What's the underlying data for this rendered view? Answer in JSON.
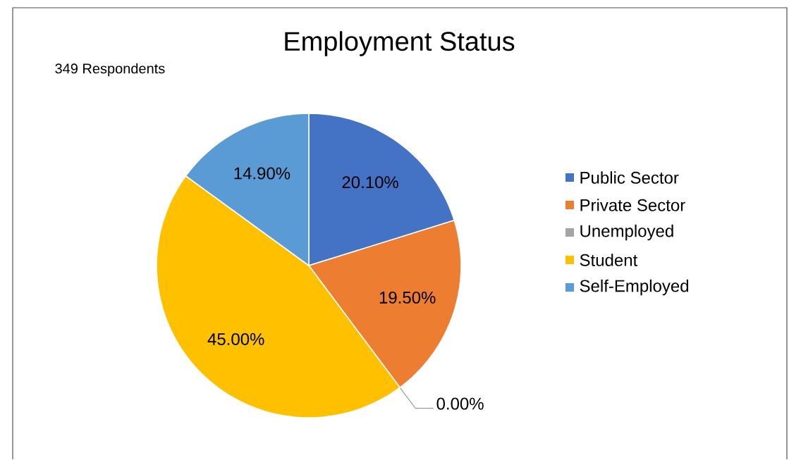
{
  "chart_data": {
    "type": "pie",
    "title": "Employment Status",
    "annotations": [
      "349 Respondents"
    ],
    "categories": [
      "Public Sector",
      "Private Sector",
      "Unemployed",
      "Student",
      "Self-Employed"
    ],
    "values": [
      20.1,
      19.5,
      0,
      45,
      14.9
    ],
    "colors": [
      "#4472c4",
      "#ed7d31",
      "#a5a5a5",
      "#ffc000",
      "#5b9bd5"
    ],
    "value_labels": [
      "20.10%",
      "19.50%",
      "0.00%",
      "45.00%",
      "14.90%"
    ],
    "legend": "right"
  }
}
